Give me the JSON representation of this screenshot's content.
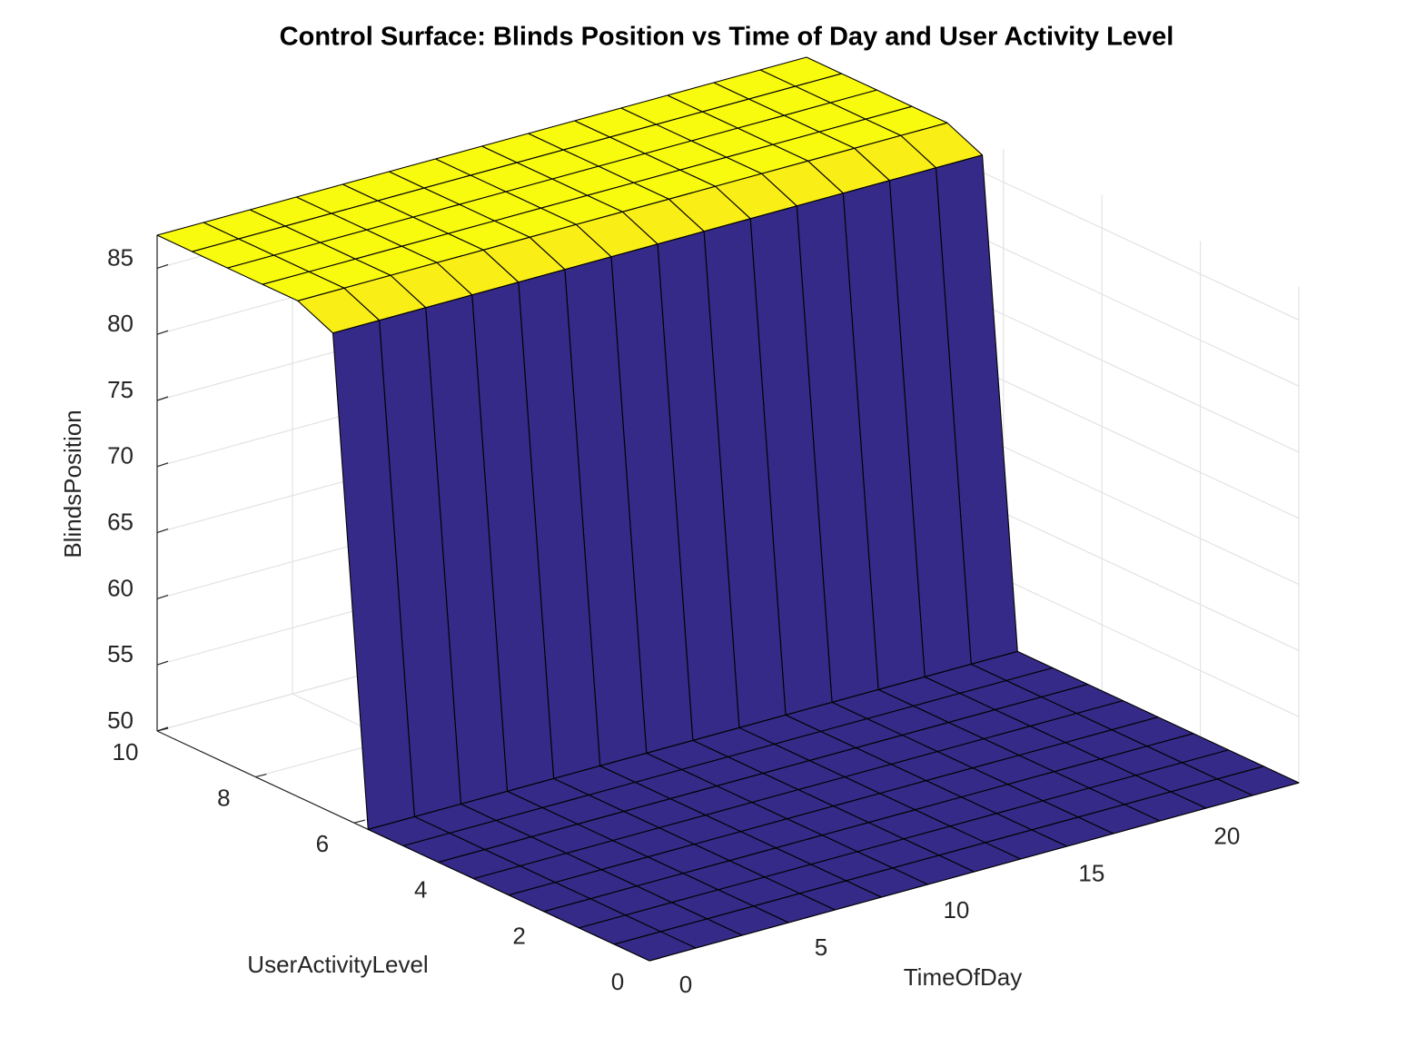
{
  "chart_data": {
    "type": "surface",
    "title": "Control Surface: Blinds Position vs Time of Day and User Activity Level",
    "xlabel": "TimeOfDay",
    "ylabel": "UserActivityLevel",
    "zlabel": "BlindsPosition",
    "x": [
      0,
      1.714,
      3.429,
      5.143,
      6.857,
      8.571,
      10.286,
      12,
      13.714,
      15.429,
      17.143,
      18.857,
      20.571,
      22.286,
      24
    ],
    "y": [
      0,
      0.714,
      1.429,
      2.143,
      2.857,
      3.571,
      4.286,
      5,
      5.714,
      6.429,
      7.143,
      7.857,
      8.571,
      9.286,
      10
    ],
    "z": [
      [
        50,
        50,
        50,
        50,
        50,
        50,
        50,
        50,
        50,
        50,
        50,
        50,
        50,
        50,
        50
      ],
      [
        50,
        50,
        50,
        50,
        50,
        50,
        50,
        50,
        50,
        50,
        50,
        50,
        50,
        50,
        50
      ],
      [
        50,
        50,
        50,
        50,
        50,
        50,
        50,
        50,
        50,
        50,
        50,
        50,
        50,
        50,
        50
      ],
      [
        50,
        50,
        50,
        50,
        50,
        50,
        50,
        50,
        50,
        50,
        50,
        50,
        50,
        50,
        50
      ],
      [
        50,
        50,
        50,
        50,
        50,
        50,
        50,
        50,
        50,
        50,
        50,
        50,
        50,
        50,
        50
      ],
      [
        50,
        50,
        50,
        50,
        50,
        50,
        50,
        50,
        50,
        50,
        50,
        50,
        50,
        50,
        50
      ],
      [
        50,
        50,
        50,
        50,
        50,
        50,
        50,
        50,
        50,
        50,
        50,
        50,
        50,
        50,
        50
      ],
      [
        50,
        50,
        50,
        50,
        50,
        50,
        50,
        50,
        50,
        50,
        50,
        50,
        50,
        50,
        50
      ],
      [
        50,
        50,
        50,
        50,
        50,
        50,
        50,
        50,
        50,
        50,
        50,
        50,
        50,
        50,
        50
      ],
      [
        86.3,
        86.3,
        86.3,
        86.3,
        86.3,
        86.3,
        86.3,
        86.3,
        86.3,
        86.3,
        86.3,
        86.3,
        86.3,
        86.3,
        86.3
      ],
      [
        87.5,
        87.5,
        87.5,
        87.5,
        87.5,
        87.5,
        87.5,
        87.5,
        87.5,
        87.5,
        87.5,
        87.5,
        87.5,
        87.5,
        87.5
      ],
      [
        87.5,
        87.5,
        87.5,
        87.5,
        87.5,
        87.5,
        87.5,
        87.5,
        87.5,
        87.5,
        87.5,
        87.5,
        87.5,
        87.5,
        87.5
      ],
      [
        87.5,
        87.5,
        87.5,
        87.5,
        87.5,
        87.5,
        87.5,
        87.5,
        87.5,
        87.5,
        87.5,
        87.5,
        87.5,
        87.5,
        87.5
      ],
      [
        87.5,
        87.5,
        87.5,
        87.5,
        87.5,
        87.5,
        87.5,
        87.5,
        87.5,
        87.5,
        87.5,
        87.5,
        87.5,
        87.5,
        87.5
      ],
      [
        87.5,
        87.5,
        87.5,
        87.5,
        87.5,
        87.5,
        87.5,
        87.5,
        87.5,
        87.5,
        87.5,
        87.5,
        87.5,
        87.5,
        87.5
      ]
    ],
    "xlim": [
      0,
      24
    ],
    "ylim": [
      0,
      10
    ],
    "zlim": [
      50,
      87.5
    ],
    "xticks": [
      0,
      5,
      10,
      15,
      20
    ],
    "yticks": [
      0,
      2,
      4,
      6,
      8,
      10
    ],
    "zticks": [
      50,
      55,
      60,
      65,
      70,
      75,
      80,
      85
    ],
    "grid": true,
    "edgecolor": "#000000",
    "colormap": [
      "#352a87",
      "#0f5cdd",
      "#127dd8",
      "#079ccf",
      "#15b1b4",
      "#59bd8c",
      "#a5be6b",
      "#e1b952",
      "#fcce2e",
      "#f9fb0e"
    ]
  }
}
